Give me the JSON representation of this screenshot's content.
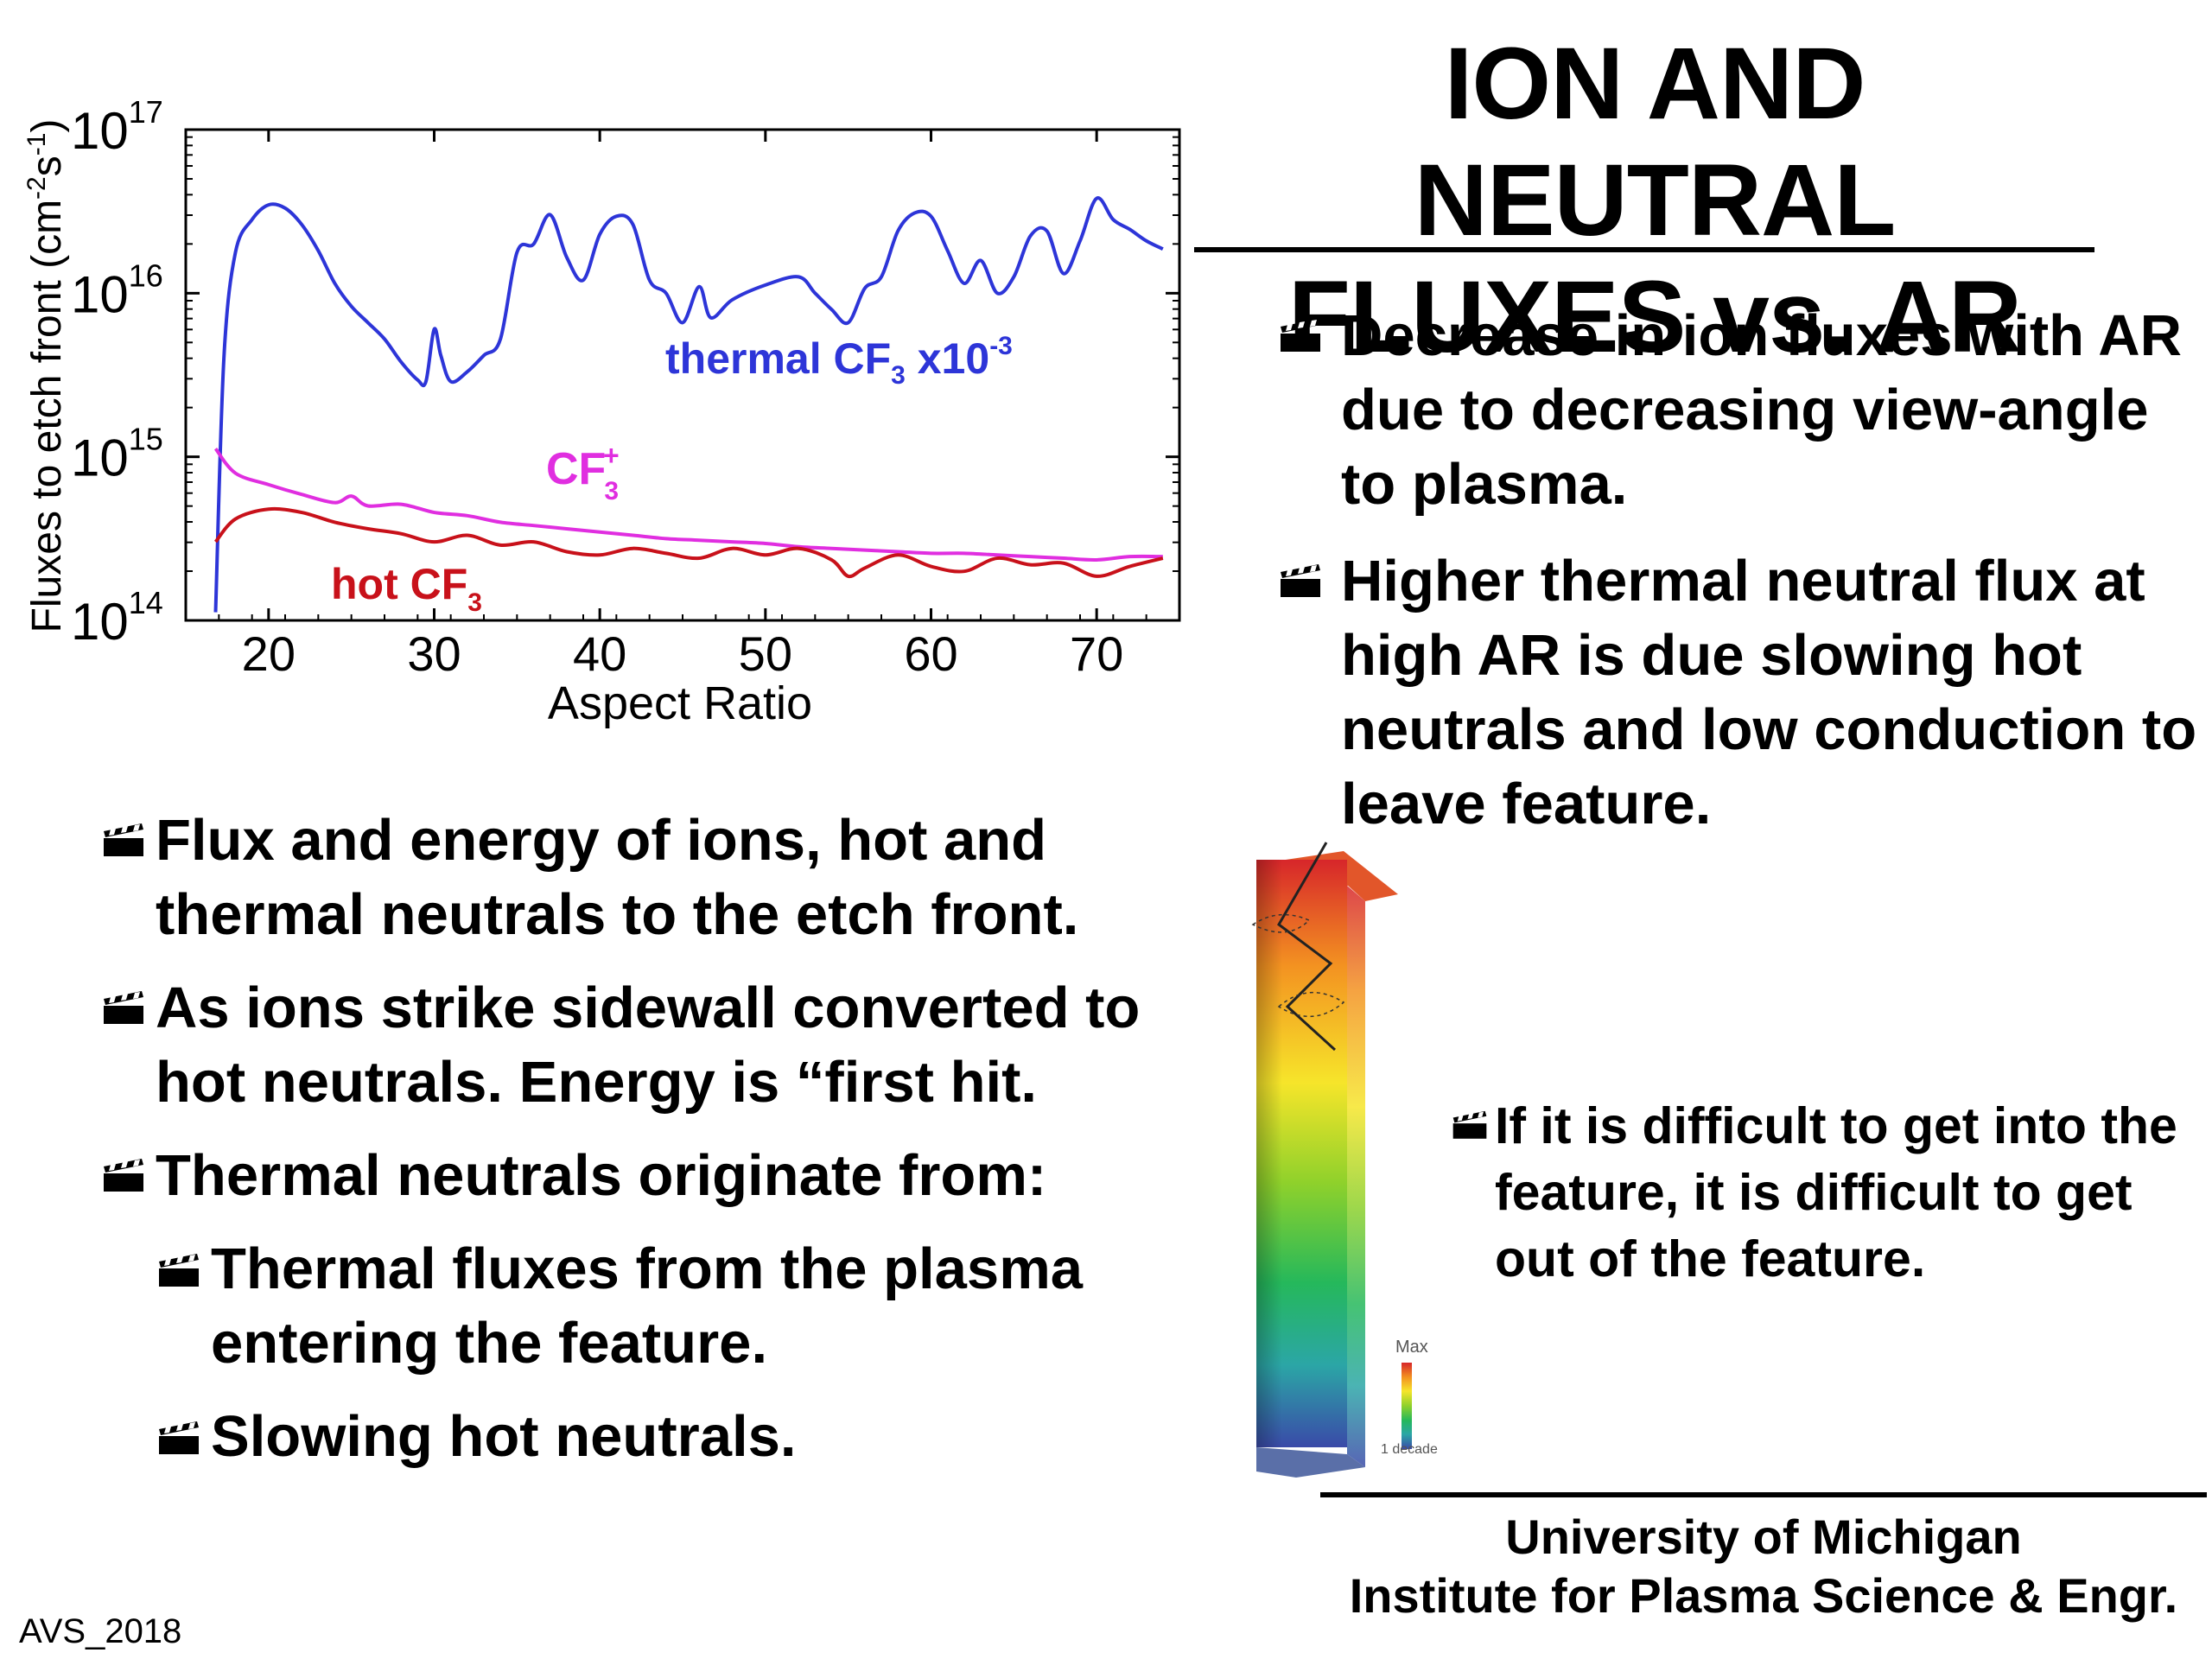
{
  "slide": {
    "title_line1": "ION AND NEUTRAL",
    "title_line2": "FLUXES vs. AR",
    "right_bullets": [
      "Decrease in ion fluxes with AR due to decreasing view-angle to plasma.",
      "Higher thermal neutral flux at high AR is due slowing hot neutrals and low conduction to leave feature."
    ],
    "left_bullets": [
      "Flux and energy of ions, hot and thermal neutrals to the etch front.",
      "As ions strike sidewall converted to hot neutrals. Energy is “first hit.",
      "Thermal neutrals originate from:"
    ],
    "left_sub_bullets": [
      "Thermal fluxes from the plasma entering the feature.",
      "Slowing hot neutrals."
    ],
    "feature_bullet": "If it is difficult to get into the feature, it is difficult to get out of the feature.",
    "footer_line1": "University of Michigan",
    "footer_line2": "Institute for Plasma Science & Engr.",
    "tag": "AVS_2018",
    "icons": {
      "bullet": "clapperboard-icon"
    }
  },
  "feature_image": {
    "legend_max": "Max",
    "legend_min": "1 decade",
    "colors": [
      "#d7262a",
      "#f39221",
      "#f6e52a",
      "#8fd12b",
      "#25b85b",
      "#2ba6a6",
      "#3a4aa8"
    ]
  },
  "chart_data": {
    "type": "line",
    "ylabel": "Fluxes to etch front (cm-2s-1)",
    "ylabel_parts": {
      "base": "Fluxes to etch front (cm",
      "exp1": "-2",
      "mid": "s",
      "exp2": "-1",
      "end": ")"
    },
    "xlabel": "Aspect Ratio",
    "xlim": [
      15,
      75
    ],
    "ylim_log10": [
      14,
      17
    ],
    "yscale": "log",
    "xticks": [
      20,
      30,
      40,
      50,
      60,
      70
    ],
    "yticks": [
      {
        "value": 14,
        "base": "10",
        "exp": "14"
      },
      {
        "value": 15,
        "base": "10",
        "exp": "15"
      },
      {
        "value": 16,
        "base": "10",
        "exp": "16"
      },
      {
        "value": 17,
        "base": "10",
        "exp": "17"
      }
    ],
    "series": [
      {
        "key": "thermal",
        "color": "#2d35d8",
        "label": {
          "base": "thermal CF",
          "sub": "3",
          "suffix": " x10",
          "sup": "-3"
        },
        "points": [
          [
            16.8,
            14.05
          ],
          [
            17.3,
            15.6
          ],
          [
            18,
            16.25
          ],
          [
            19,
            16.45
          ],
          [
            20,
            16.54
          ],
          [
            21,
            16.52
          ],
          [
            22,
            16.42
          ],
          [
            23,
            16.26
          ],
          [
            24,
            16.06
          ],
          [
            25,
            15.92
          ],
          [
            26,
            15.82
          ],
          [
            27,
            15.72
          ],
          [
            28,
            15.58
          ],
          [
            29,
            15.47
          ],
          [
            29.5,
            15.46
          ],
          [
            30,
            15.78
          ],
          [
            30.4,
            15.62
          ],
          [
            31,
            15.46
          ],
          [
            32,
            15.52
          ],
          [
            33,
            15.62
          ],
          [
            34,
            15.72
          ],
          [
            35,
            16.25
          ],
          [
            36,
            16.3
          ],
          [
            37,
            16.48
          ],
          [
            38,
            16.22
          ],
          [
            39,
            16.08
          ],
          [
            40,
            16.36
          ],
          [
            41,
            16.47
          ],
          [
            42,
            16.42
          ],
          [
            43,
            16.08
          ],
          [
            44,
            16.0
          ],
          [
            45,
            15.82
          ],
          [
            46,
            16.04
          ],
          [
            46.7,
            15.85
          ],
          [
            48,
            15.96
          ],
          [
            50,
            16.05
          ],
          [
            52,
            16.1
          ],
          [
            53,
            16.0
          ],
          [
            54,
            15.9
          ],
          [
            55,
            15.82
          ],
          [
            56,
            16.03
          ],
          [
            57,
            16.1
          ],
          [
            58,
            16.38
          ],
          [
            59,
            16.49
          ],
          [
            60,
            16.47
          ],
          [
            61,
            16.26
          ],
          [
            62,
            16.06
          ],
          [
            63,
            16.2
          ],
          [
            64,
            16.0
          ],
          [
            65,
            16.1
          ],
          [
            66,
            16.35
          ],
          [
            67,
            16.38
          ],
          [
            68,
            16.12
          ],
          [
            69,
            16.32
          ],
          [
            70,
            16.58
          ],
          [
            71,
            16.45
          ],
          [
            72,
            16.39
          ],
          [
            73,
            16.32
          ],
          [
            74,
            16.27
          ]
        ]
      },
      {
        "key": "ion",
        "color": "#e02ee0",
        "label": {
          "base": "CF",
          "sub": "3",
          "sup": "+"
        },
        "points": [
          [
            16.8,
            15.05
          ],
          [
            18,
            14.9
          ],
          [
            20,
            14.83
          ],
          [
            22,
            14.77
          ],
          [
            24,
            14.72
          ],
          [
            25,
            14.76
          ],
          [
            26,
            14.7
          ],
          [
            28,
            14.71
          ],
          [
            30,
            14.66
          ],
          [
            32,
            14.64
          ],
          [
            34,
            14.6
          ],
          [
            36,
            14.58
          ],
          [
            38,
            14.56
          ],
          [
            40,
            14.54
          ],
          [
            42,
            14.52
          ],
          [
            44,
            14.5
          ],
          [
            46,
            14.49
          ],
          [
            48,
            14.48
          ],
          [
            50,
            14.47
          ],
          [
            52,
            14.45
          ],
          [
            54,
            14.44
          ],
          [
            56,
            14.43
          ],
          [
            58,
            14.42
          ],
          [
            60,
            14.41
          ],
          [
            62,
            14.41
          ],
          [
            64,
            14.4
          ],
          [
            66,
            14.39
          ],
          [
            68,
            14.38
          ],
          [
            70,
            14.37
          ],
          [
            72,
            14.39
          ],
          [
            74,
            14.39
          ]
        ]
      },
      {
        "key": "hot",
        "color": "#c8111a",
        "label": {
          "base": "hot CF",
          "sub": "3"
        },
        "points": [
          [
            16.8,
            14.48
          ],
          [
            18,
            14.62
          ],
          [
            20,
            14.68
          ],
          [
            22,
            14.66
          ],
          [
            24,
            14.6
          ],
          [
            26,
            14.56
          ],
          [
            28,
            14.53
          ],
          [
            30,
            14.48
          ],
          [
            32,
            14.52
          ],
          [
            34,
            14.46
          ],
          [
            36,
            14.48
          ],
          [
            38,
            14.42
          ],
          [
            40,
            14.4
          ],
          [
            42,
            14.44
          ],
          [
            44,
            14.41
          ],
          [
            46,
            14.38
          ],
          [
            48,
            14.44
          ],
          [
            50,
            14.4
          ],
          [
            52,
            14.44
          ],
          [
            54,
            14.37
          ],
          [
            55,
            14.27
          ],
          [
            56,
            14.32
          ],
          [
            58,
            14.4
          ],
          [
            60,
            14.33
          ],
          [
            62,
            14.3
          ],
          [
            64,
            14.38
          ],
          [
            66,
            14.34
          ],
          [
            68,
            14.35
          ],
          [
            70,
            14.27
          ],
          [
            72,
            14.33
          ],
          [
            74,
            14.38
          ]
        ]
      }
    ]
  }
}
